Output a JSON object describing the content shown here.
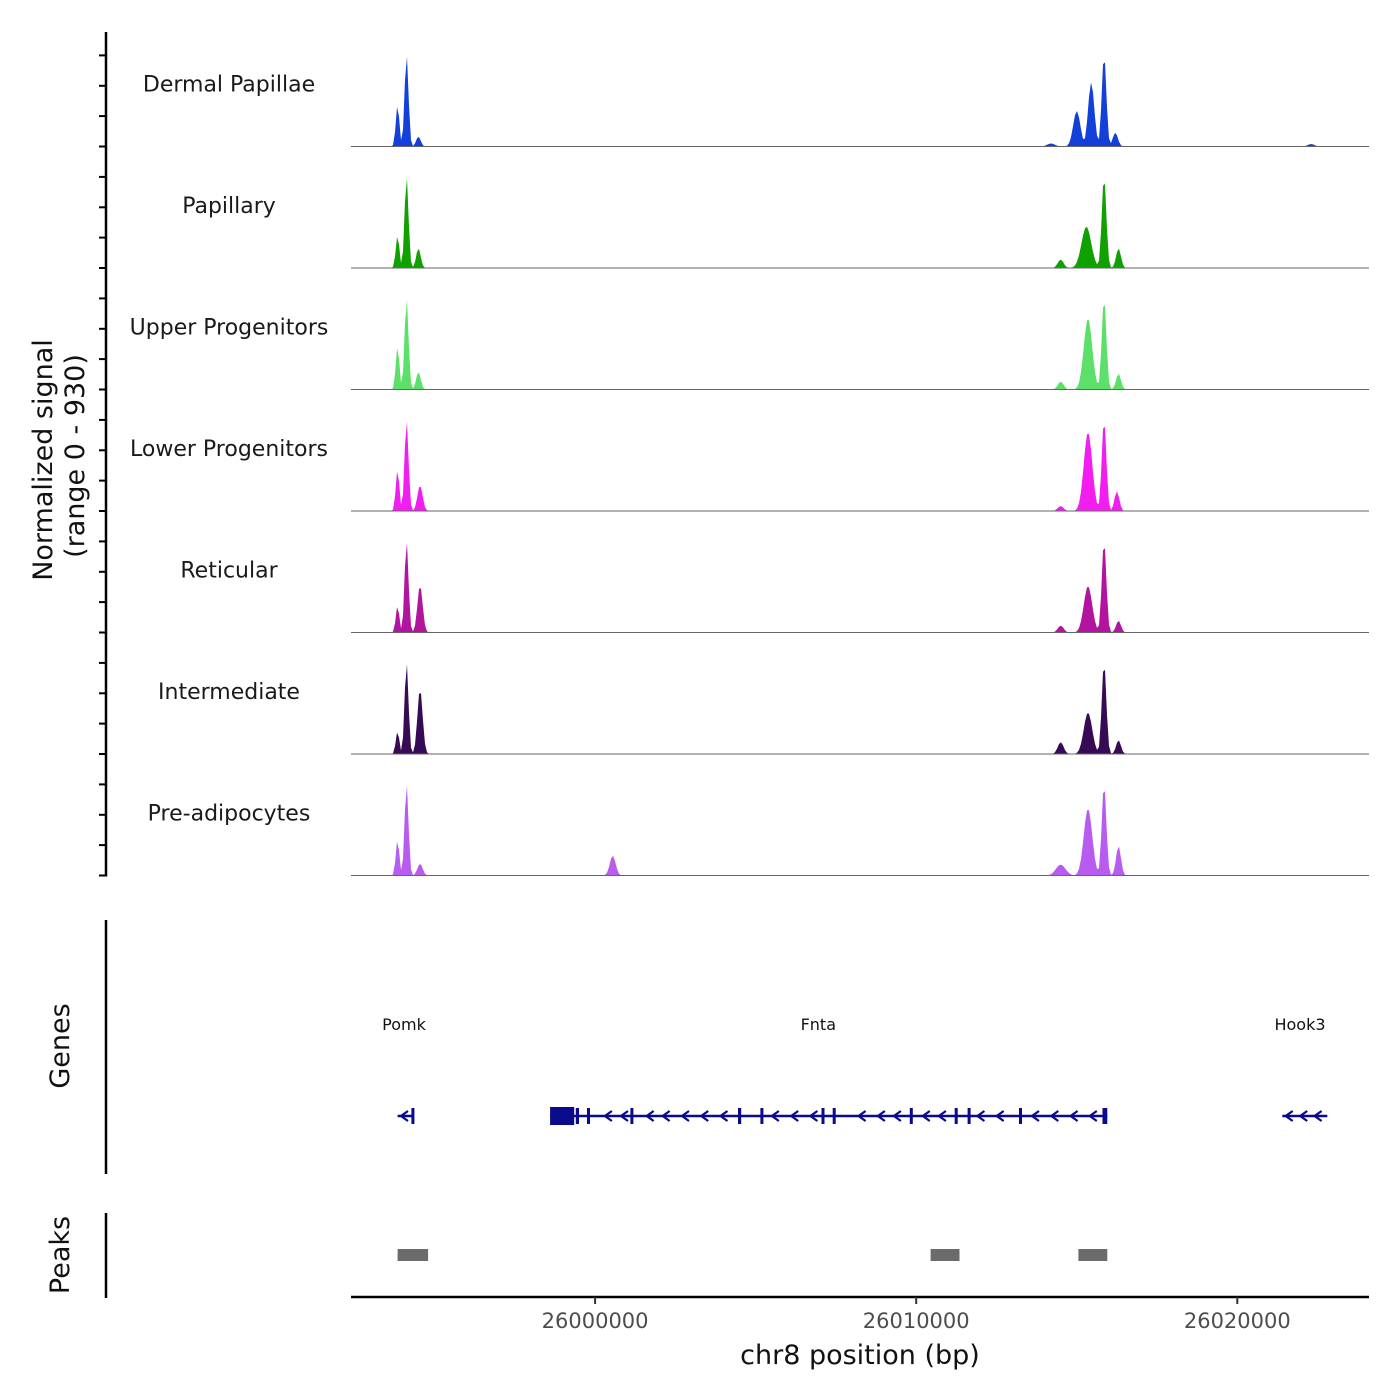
{
  "chart_data": {
    "type": "area",
    "title": "",
    "ylabel_line1": "Normalized signal",
    "ylabel_line2": "(range 0 - 930)",
    "yrange": [
      0,
      930
    ],
    "xlabel": "chr8 position (bp)",
    "xlim": [
      25992400,
      26024100
    ],
    "xticks": [
      26000000,
      26010000,
      26020000
    ],
    "xtick_labels": [
      "26000000",
      "26010000",
      "26020000"
    ],
    "genes_label": "Genes",
    "peaks_label": "Peaks",
    "series": [
      {
        "name": "Dermal Papillae",
        "color": "#1240d8",
        "peaks": [
          [
            25993850,
            420,
            55
          ],
          [
            25994130,
            930,
            60
          ],
          [
            25994500,
            100,
            70
          ],
          [
            26015000,
            360,
            110
          ],
          [
            26015450,
            650,
            95
          ],
          [
            26015850,
            930,
            70
          ],
          [
            26016200,
            140,
            80
          ],
          [
            26014200,
            30,
            120
          ],
          [
            26022300,
            25,
            100
          ]
        ]
      },
      {
        "name": "Papillary",
        "color": "#10a000",
        "peaks": [
          [
            25993850,
            330,
            55
          ],
          [
            25994130,
            930,
            60
          ],
          [
            25994500,
            200,
            70
          ],
          [
            26014500,
            85,
            90
          ],
          [
            26015300,
            420,
            150
          ],
          [
            26015850,
            930,
            70
          ],
          [
            26016300,
            200,
            75
          ]
        ]
      },
      {
        "name": "Upper Progenitors",
        "color": "#5ce06a",
        "peaks": [
          [
            25993850,
            440,
            55
          ],
          [
            25994130,
            930,
            60
          ],
          [
            25994500,
            180,
            70
          ],
          [
            26014500,
            80,
            90
          ],
          [
            26015350,
            720,
            130
          ],
          [
            26015850,
            930,
            70
          ],
          [
            26016300,
            160,
            75
          ]
        ]
      },
      {
        "name": "Lower Progenitors",
        "color": "#f21ef0",
        "peaks": [
          [
            25993850,
            420,
            55
          ],
          [
            25994130,
            930,
            60
          ],
          [
            25994550,
            260,
            80
          ],
          [
            26014500,
            50,
            90
          ],
          [
            26015350,
            800,
            130
          ],
          [
            26015850,
            930,
            70
          ],
          [
            26016250,
            200,
            75
          ]
        ]
      },
      {
        "name": "Reticular",
        "color": "#b2139f",
        "peaks": [
          [
            25993850,
            270,
            55
          ],
          [
            25994130,
            930,
            60
          ],
          [
            25994550,
            480,
            80
          ],
          [
            26014500,
            70,
            90
          ],
          [
            26015350,
            470,
            130
          ],
          [
            26015850,
            930,
            70
          ],
          [
            26016300,
            120,
            75
          ]
        ]
      },
      {
        "name": "Intermediate",
        "color": "#360a55",
        "peaks": [
          [
            25993850,
            230,
            55
          ],
          [
            25994130,
            930,
            60
          ],
          [
            25994550,
            660,
            80
          ],
          [
            26014500,
            120,
            90
          ],
          [
            26015350,
            420,
            130
          ],
          [
            26015850,
            930,
            70
          ],
          [
            26016300,
            140,
            75
          ]
        ]
      },
      {
        "name": "Pre-adipocytes",
        "color": "#b85cf0",
        "peaks": [
          [
            25993850,
            360,
            55
          ],
          [
            25994130,
            930,
            60
          ],
          [
            25994550,
            120,
            80
          ],
          [
            26000550,
            200,
            90
          ],
          [
            26014500,
            110,
            150
          ],
          [
            26015350,
            680,
            130
          ],
          [
            26015850,
            930,
            70
          ],
          [
            26016300,
            300,
            75
          ]
        ]
      }
    ],
    "genes": [
      {
        "name": "Pomk",
        "start": 25993850,
        "end": 25994350,
        "strand": "-",
        "exons": [
          [
            25994280,
            25994350
          ]
        ],
        "arrows": [
          25994050
        ],
        "label_x": 25994050
      },
      {
        "name": "Fnta",
        "start": 25998600,
        "end": 26015950,
        "strand": "-",
        "exons": [
          [
            25998600,
            25999350
          ],
          [
            25999400,
            25999500
          ],
          [
            25999750,
            25999800
          ],
          [
            26001100,
            26001140
          ],
          [
            26004450,
            26004550
          ],
          [
            26005150,
            26005190
          ],
          [
            26007050,
            26007120
          ],
          [
            26007400,
            26007450
          ],
          [
            26009800,
            26009850
          ],
          [
            26011200,
            26011260
          ],
          [
            26011600,
            26011650
          ],
          [
            26013200,
            26013250
          ],
          [
            26015800,
            26015950
          ]
        ],
        "arrows": [
          26000400,
          26000900,
          26001700,
          26002200,
          26002800,
          26003400,
          26004000,
          26005600,
          26006200,
          26006800,
          26008300,
          26008900,
          26009400,
          26010300,
          26010800,
          26012000,
          26012600,
          26013700,
          26014300,
          26014900,
          26015500
        ],
        "label_x": 26006950
      },
      {
        "name": "Hook3",
        "start": 26021400,
        "end": 26022800,
        "strand": "-",
        "exons": [],
        "arrows": [
          26021600,
          26022050,
          26022500
        ],
        "label_x": 26021950
      }
    ],
    "peak_regions": [
      [
        25993850,
        25994800
      ],
      [
        26010450,
        26011350
      ],
      [
        26015050,
        26015950
      ]
    ]
  }
}
